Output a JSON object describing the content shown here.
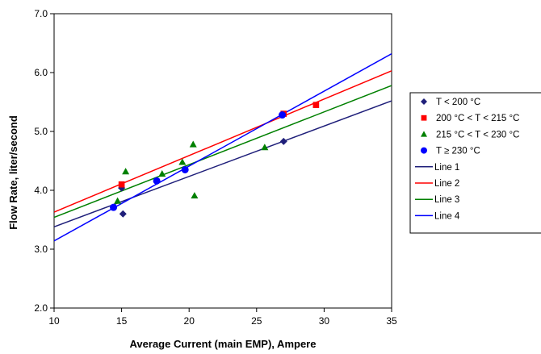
{
  "chart_data": {
    "type": "scatter",
    "title": "",
    "xlabel": "Average Current (main EMP), Ampere",
    "ylabel": "Flow Rate, liter/second",
    "xlim": [
      10,
      35
    ],
    "ylim": [
      2.0,
      7.0
    ],
    "xticks": [
      "10",
      "15",
      "20",
      "25",
      "30",
      "35"
    ],
    "yticks": [
      "2.0",
      "3.0",
      "4.0",
      "5.0",
      "6.0",
      "7.0"
    ],
    "grid": false,
    "legend_position": "right",
    "series": [
      {
        "name": "T < 200 °C",
        "kind": "scatter",
        "marker": "diamond",
        "color": "#1f1f7a",
        "points": [
          [
            15.0,
            4.04
          ],
          [
            15.1,
            3.6
          ],
          [
            27.0,
            4.83
          ]
        ]
      },
      {
        "name": "200 °C < T < 215 °C",
        "kind": "scatter",
        "marker": "square",
        "color": "#ff0000",
        "points": [
          [
            15.0,
            4.1
          ],
          [
            27.0,
            5.3
          ],
          [
            29.4,
            5.45
          ]
        ]
      },
      {
        "name": "215 °C < T < 230 °C",
        "kind": "scatter",
        "marker": "triangle",
        "color": "#008000",
        "points": [
          [
            14.7,
            3.82
          ],
          [
            15.3,
            4.32
          ],
          [
            18.0,
            4.28
          ],
          [
            19.5,
            4.48
          ],
          [
            20.3,
            4.78
          ],
          [
            20.4,
            3.91
          ],
          [
            25.6,
            4.73
          ]
        ]
      },
      {
        "name": "T ≥ 230 °C",
        "kind": "scatter",
        "marker": "circle",
        "color": "#0000ff",
        "points": [
          [
            14.4,
            3.71
          ],
          [
            17.6,
            4.16
          ],
          [
            19.7,
            4.35
          ],
          [
            26.9,
            5.28
          ]
        ]
      },
      {
        "name": "Line 1",
        "kind": "line",
        "color": "#1f1f7a",
        "points": [
          [
            10,
            3.38
          ],
          [
            35,
            5.52
          ]
        ]
      },
      {
        "name": "Line 2",
        "kind": "line",
        "color": "#ff0000",
        "points": [
          [
            10,
            3.63
          ],
          [
            35,
            6.03
          ]
        ]
      },
      {
        "name": "Line 3",
        "kind": "line",
        "color": "#008000",
        "points": [
          [
            10,
            3.54
          ],
          [
            35,
            5.78
          ]
        ]
      },
      {
        "name": "Line 4",
        "kind": "line",
        "color": "#0000ff",
        "points": [
          [
            10,
            3.14
          ],
          [
            35,
            6.32
          ]
        ]
      }
    ]
  }
}
